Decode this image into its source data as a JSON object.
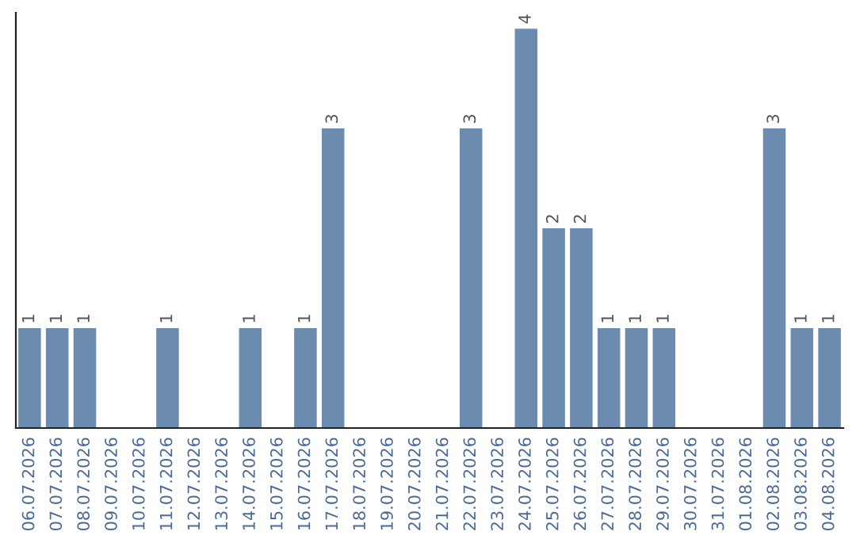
{
  "chart_data": {
    "type": "bar",
    "categories": [
      "06.07.2026",
      "07.07.2026",
      "08.07.2026",
      "09.07.2026",
      "10.07.2026",
      "11.07.2026",
      "12.07.2026",
      "13.07.2026",
      "14.07.2026",
      "15.07.2026",
      "16.07.2026",
      "17.07.2026",
      "18.07.2026",
      "19.07.2026",
      "20.07.2026",
      "21.07.2026",
      "22.07.2026",
      "23.07.2026",
      "24.07.2026",
      "25.07.2026",
      "26.07.2026",
      "27.07.2026",
      "28.07.2026",
      "29.07.2026",
      "30.07.2026",
      "31.07.2026",
      "01.08.2026",
      "02.08.2026",
      "03.08.2026",
      "04.08.2026"
    ],
    "values": [
      1,
      1,
      1,
      0,
      0,
      1,
      0,
      0,
      1,
      0,
      1,
      3,
      0,
      0,
      0,
      0,
      3,
      0,
      4,
      2,
      2,
      1,
      1,
      1,
      0,
      0,
      0,
      3,
      1,
      1
    ],
    "value_labels": [
      "1",
      "1",
      "1",
      null,
      null,
      "1",
      null,
      null,
      "1",
      null,
      "1",
      "3",
      null,
      null,
      null,
      null,
      "3",
      null,
      "4",
      "2",
      "2",
      "1",
      "1",
      "1",
      null,
      null,
      null,
      "3",
      "1",
      "1"
    ],
    "color": "#6b8cae",
    "grid": false,
    "legend": false
  }
}
